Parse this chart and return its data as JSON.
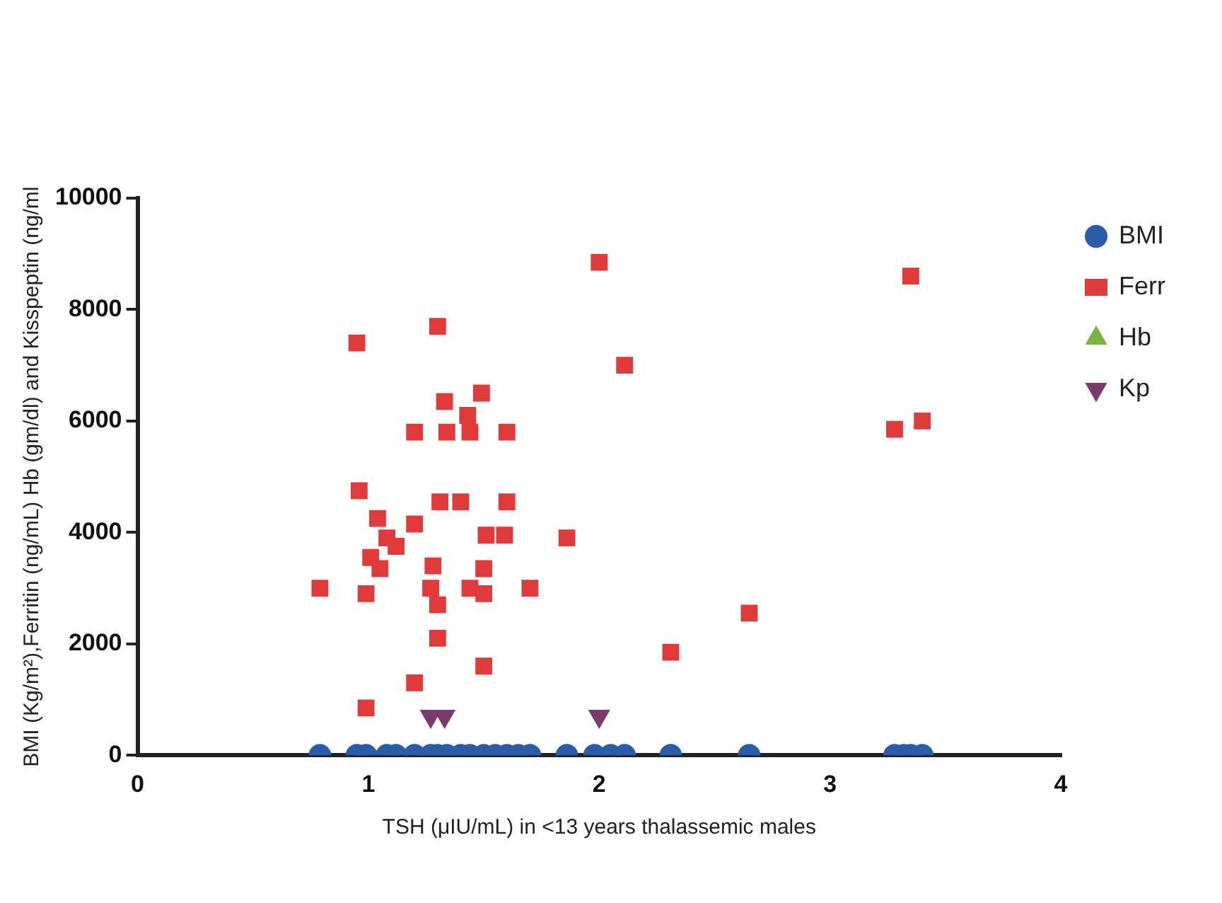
{
  "chart_data": {
    "type": "scatter",
    "xlabel": "TSH (μIU/mL) in <13 years thalassemic males",
    "ylabel": "BMI (Kg/m²),Ferritin (ng/mL) Hb (gm/dl) and Kisspeptin (ng/ml",
    "xlim": [
      0,
      4
    ],
    "xticks": [
      0,
      1,
      2,
      3,
      4
    ],
    "ylim": [
      0,
      10000
    ],
    "yticks": [
      0,
      2000,
      4000,
      6000,
      8000,
      10000
    ],
    "grid": false,
    "legend": "right",
    "series": [
      {
        "name": "BMI",
        "color": "#2a5caa",
        "marker": "circle",
        "x": [
          0.79,
          0.95,
          0.99,
          1.08,
          1.12,
          1.2,
          1.27,
          1.3,
          1.34,
          1.4,
          1.44,
          1.5,
          1.55,
          1.6,
          1.65,
          1.7,
          1.86,
          1.98,
          2.05,
          2.11,
          2.31,
          2.65,
          3.28,
          3.32,
          3.35,
          3.4
        ],
        "values": [
          0,
          0,
          0,
          0,
          0,
          0,
          0,
          0,
          0,
          0,
          0,
          0,
          0,
          0,
          0,
          0,
          0,
          0,
          0,
          0,
          0,
          0,
          0,
          0,
          0,
          0
        ]
      },
      {
        "name": "Ferr",
        "color": "#e03a3a",
        "marker": "square",
        "x": [
          0.95,
          1.3,
          1.33,
          1.49,
          1.43,
          1.2,
          1.34,
          1.44,
          1.6,
          0.96,
          1.04,
          1.2,
          1.31,
          1.4,
          1.6,
          1.51,
          1.59,
          1.86,
          1.08,
          1.01,
          1.12,
          1.05,
          1.28,
          1.5,
          0.79,
          0.99,
          1.27,
          1.3,
          1.44,
          1.5,
          1.7,
          1.3,
          1.5,
          1.2,
          0.99,
          2.0,
          2.11,
          3.35,
          3.28,
          3.4,
          2.65,
          2.31
        ],
        "values": [
          7400,
          7700,
          6350,
          6500,
          6100,
          5800,
          5800,
          5800,
          5800,
          4750,
          4250,
          4150,
          4550,
          4550,
          4550,
          3950,
          3950,
          3900,
          3900,
          3550,
          3750,
          3350,
          3400,
          3350,
          3000,
          2900,
          3000,
          2700,
          3000,
          2900,
          3000,
          2100,
          1600,
          1300,
          850,
          8850,
          7000,
          8600,
          5850,
          6000,
          2550,
          1850
        ]
      },
      {
        "name": "Hb",
        "color": "#7cb342",
        "marker": "triangle"
      },
      {
        "name": "Kp",
        "color": "#7b3a6e",
        "marker": "triangle-down",
        "x": [
          1.27,
          1.33,
          2.0
        ],
        "values": [
          700,
          700,
          700
        ]
      }
    ]
  }
}
